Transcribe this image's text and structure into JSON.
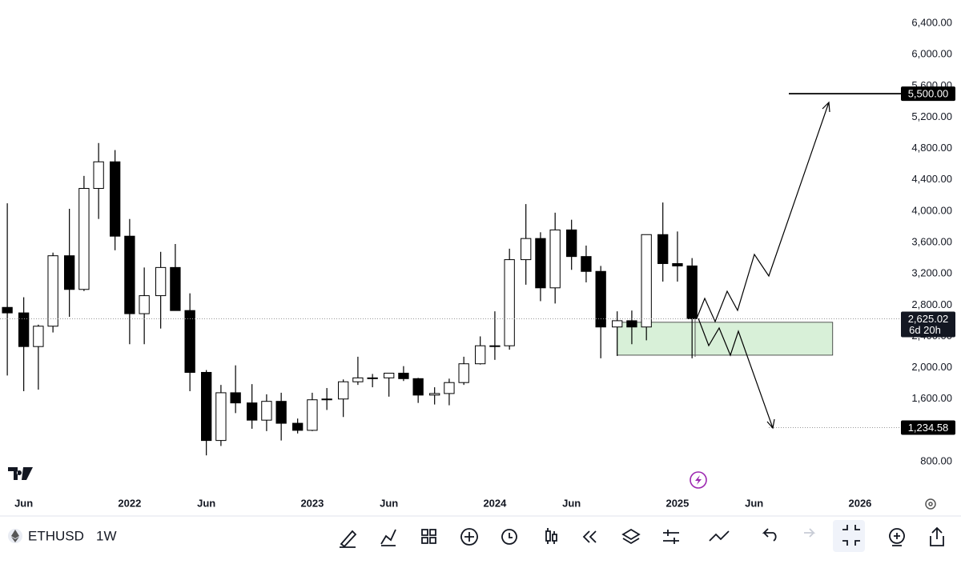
{
  "chart_data": {
    "type": "candlestick",
    "x": [
      2021.33,
      2021.42,
      2021.5,
      2021.58,
      2021.67,
      2021.75,
      2021.83,
      2021.92,
      2022.0,
      2022.08,
      2022.17,
      2022.25,
      2022.33,
      2022.42,
      2022.5,
      2022.58,
      2022.67,
      2022.75,
      2022.83,
      2022.92,
      2023.0,
      2023.08,
      2023.17,
      2023.25,
      2023.33,
      2023.42,
      2023.5,
      2023.58,
      2023.67,
      2023.75,
      2023.83,
      2023.92,
      2024.0,
      2024.08,
      2024.17,
      2024.25,
      2024.33,
      2024.42,
      2024.5,
      2024.58,
      2024.67,
      2024.75,
      2024.83,
      2024.92,
      2025.0,
      2025.08
    ],
    "open": [
      2770,
      2700,
      2270,
      2530,
      3430,
      3000,
      4290,
      4630,
      3680,
      2690,
      2920,
      3280,
      2730,
      1940,
      1070,
      1680,
      1550,
      1330,
      1570,
      1290,
      1200,
      1590,
      1600,
      1820,
      1870,
      1870,
      1930,
      1860,
      1650,
      1670,
      1810,
      2050,
      2280,
      2280,
      3380,
      3650,
      3020,
      3760,
      3420,
      3230,
      2520,
      2600,
      2520,
      3700,
      3330,
      3300
    ],
    "high": [
      4100,
      2900,
      2550,
      3470,
      4030,
      4450,
      4870,
      4780,
      3900,
      3280,
      3480,
      3580,
      2950,
      1970,
      1780,
      2030,
      1790,
      1660,
      1680,
      1350,
      1680,
      1740,
      1850,
      2140,
      1920,
      1930,
      2020,
      1870,
      1750,
      1860,
      2140,
      2400,
      2720,
      3520,
      4090,
      3730,
      3980,
      3890,
      3560,
      3300,
      2720,
      2730,
      3700,
      4110,
      3740,
      3400
    ],
    "low": [
      1900,
      1700,
      1720,
      2450,
      2650,
      2980,
      3900,
      3500,
      2300,
      2300,
      2500,
      2780,
      1700,
      880,
      1000,
      1420,
      1220,
      1190,
      1070,
      1160,
      1190,
      1460,
      1370,
      1780,
      1750,
      1630,
      1830,
      1550,
      1530,
      1520,
      1780,
      2040,
      2100,
      2230,
      3060,
      2850,
      2820,
      3250,
      3090,
      2120,
      2150,
      2300,
      2350,
      3100,
      3100,
      2120
    ],
    "close": [
      2700,
      2270,
      2530,
      3430,
      3000,
      4290,
      4630,
      3680,
      2690,
      2920,
      3280,
      2730,
      1940,
      1070,
      1680,
      1550,
      1330,
      1570,
      1290,
      1200,
      1590,
      1600,
      1820,
      1870,
      1870,
      1930,
      1860,
      1650,
      1670,
      1810,
      2050,
      2280,
      2280,
      3380,
      3650,
      3020,
      3760,
      3420,
      3230,
      2520,
      2600,
      2520,
      3700,
      3330,
      3300,
      2625
    ],
    "up_color": "#ffffff",
    "down_color": "#000000",
    "xlim": [
      2021.29,
      2026.18
    ],
    "xticks": [
      {
        "value": 2021.42,
        "label": "Jun"
      },
      2022,
      {
        "value": 2022.42,
        "label": "Jun"
      },
      2023,
      {
        "value": 2023.42,
        "label": "Jun"
      },
      2024,
      {
        "value": 2024.42,
        "label": "Jun"
      },
      2025,
      {
        "value": 2025.42,
        "label": "Jun"
      },
      2026
    ],
    "ylim": [
      412,
      6697
    ],
    "yticks": [
      {
        "value": 800,
        "label": "800.00"
      },
      {
        "value": 1600,
        "label": "1,600.00"
      },
      {
        "value": 2000,
        "label": "2,000.00"
      },
      {
        "value": 2400,
        "label": "2,400.00"
      },
      {
        "value": 2800,
        "label": "2,800.00"
      },
      {
        "value": 3200,
        "label": "3,200.00"
      },
      {
        "value": 3600,
        "label": "3,600.00"
      },
      {
        "value": 4000,
        "label": "4,000.00"
      },
      {
        "value": 4400,
        "label": "4,400.00"
      },
      {
        "value": 4800,
        "label": "4,800.00"
      },
      {
        "value": 5200,
        "label": "5,200.00"
      },
      {
        "value": 5600,
        "label": "5,600.00"
      },
      {
        "value": 6000,
        "label": "6,000.00"
      },
      {
        "value": 6400,
        "label": "6,400.00"
      }
    ],
    "price_lines": [
      {
        "value": 5500,
        "label": "5,500.00",
        "style": "solid"
      },
      {
        "value": 2625.02,
        "label": "2,625.02",
        "countdown": "6d 20h",
        "style": "dotted"
      },
      {
        "value": 1234.58,
        "label": "1,234.58",
        "style": "dotted"
      }
    ],
    "zone": {
      "x": [
        2024.67,
        2025.85
      ],
      "y": [
        2160,
        2580
      ],
      "color": "#d8f0d8"
    }
  },
  "toolbar": {
    "symbol": "ETHUSD",
    "interval": "1W"
  }
}
